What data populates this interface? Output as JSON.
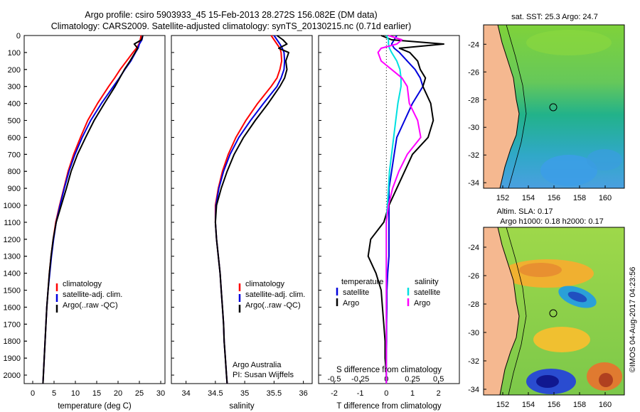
{
  "title": {
    "line1": "Argo profile: csiro 5903933_45 15-Feb-2013 28.272S 156.082E (DM data)",
    "line2": "Climatology: CARS2009. Satellite-adjusted climatology: synTS_20130215.nc (0.71d earlier)"
  },
  "colors": {
    "climatology": "#ff0000",
    "satellite": "#0000dd",
    "argo": "#000000",
    "sat_s": "#00e0e0",
    "argo_s": "#ff00ff",
    "land": "#f5b890"
  },
  "depth_axis": {
    "min": 0,
    "max": 2050,
    "ticks": [
      "0",
      "100",
      "200",
      "300",
      "400",
      "500",
      "600",
      "700",
      "800",
      "900",
      "1000",
      "1100",
      "1200",
      "1300",
      "1400",
      "1500",
      "1600",
      "1700",
      "1800",
      "1900",
      "2000"
    ]
  },
  "chart_data": [
    {
      "type": "line",
      "name": "temperature",
      "xlabel": "temperature (deg C)",
      "xlim": [
        -2,
        31
      ],
      "xticks": [
        "0",
        "5",
        "10",
        "15",
        "20",
        "25",
        "30"
      ],
      "depths": [
        0,
        25,
        50,
        75,
        100,
        150,
        200,
        250,
        300,
        400,
        500,
        600,
        700,
        800,
        900,
        1000,
        1100,
        1200,
        1300,
        1400,
        1500,
        1600,
        1700,
        1800,
        1900,
        2000,
        2050
      ],
      "series": [
        {
          "name": "climatology",
          "values": [
            25.4,
            25.2,
            24.9,
            24.3,
            23.5,
            22.0,
            20.5,
            19.2,
            17.8,
            15.2,
            12.9,
            11.2,
            9.6,
            8.3,
            7.3,
            6.3,
            5.4,
            4.8,
            4.3,
            3.9,
            3.6,
            3.3,
            3.1,
            2.9,
            2.7,
            2.5,
            2.4
          ]
        },
        {
          "name": "satellite",
          "values": [
            25.8,
            25.6,
            25.0,
            24.7,
            24.1,
            23.0,
            21.6,
            20.3,
            18.9,
            16.1,
            13.6,
            11.6,
            9.9,
            8.5,
            7.4,
            6.4,
            5.5,
            4.9,
            4.4,
            4.0,
            3.6,
            3.3,
            3.1,
            2.9,
            2.7,
            2.5,
            2.4
          ]
        },
        {
          "name": "argo",
          "values": [
            25.8,
            25.5,
            23.8,
            24.6,
            24.0,
            22.8,
            21.5,
            20.4,
            19.3,
            16.8,
            14.4,
            12.4,
            10.5,
            9.0,
            7.9,
            6.7,
            5.5,
            4.8,
            4.3,
            3.9,
            3.6,
            3.3,
            3.1,
            2.9,
            2.7,
            2.5,
            2.4
          ]
        }
      ],
      "legend": [
        "climatology",
        "satellite-adj. clim.",
        "Argo(..raw -QC)"
      ]
    },
    {
      "type": "line",
      "name": "salinity",
      "xlabel": "salinity",
      "xlim": [
        33.75,
        36.15
      ],
      "xticks": [
        "34",
        "34.5",
        "35",
        "35.5",
        "36"
      ],
      "depths": [
        0,
        25,
        50,
        75,
        100,
        150,
        200,
        250,
        300,
        400,
        500,
        600,
        700,
        800,
        900,
        1000,
        1100,
        1200,
        1300,
        1400,
        1500,
        1600,
        1700,
        1800,
        1900,
        2000,
        2050
      ],
      "series": [
        {
          "name": "climatology",
          "values": [
            35.45,
            35.5,
            35.55,
            35.6,
            35.62,
            35.63,
            35.6,
            35.55,
            35.45,
            35.22,
            35.02,
            34.85,
            34.72,
            34.62,
            34.55,
            34.5,
            34.5,
            34.52,
            34.55,
            34.58,
            34.6,
            34.62,
            34.64,
            34.65,
            34.67,
            34.69,
            34.7
          ]
        },
        {
          "name": "satellite",
          "values": [
            35.5,
            35.55,
            35.6,
            35.64,
            35.67,
            35.68,
            35.67,
            35.62,
            35.55,
            35.32,
            35.1,
            34.9,
            34.75,
            34.64,
            34.56,
            34.51,
            34.5,
            34.52,
            34.55,
            34.58,
            34.6,
            34.62,
            34.64,
            34.65,
            34.67,
            34.69,
            34.7
          ]
        },
        {
          "name": "argo",
          "values": [
            35.55,
            35.65,
            35.72,
            35.58,
            35.75,
            35.7,
            35.72,
            35.68,
            35.6,
            35.4,
            35.18,
            34.98,
            34.82,
            34.7,
            34.6,
            34.52,
            34.5,
            34.52,
            34.55,
            34.58,
            34.6,
            34.62,
            34.64,
            34.65,
            34.67,
            34.69,
            34.7
          ]
        }
      ],
      "legend": [
        "climatology",
        "satellite-adj. clim.",
        "Argo(..raw -QC)"
      ],
      "annotation": {
        "line1": "Argo Australia",
        "line2": "PI: Susan Wijffels"
      }
    },
    {
      "type": "line",
      "name": "differences",
      "xlabel": "T difference from climatology",
      "xlabel_top": "S difference from climatology",
      "xlim": [
        -2.6,
        2.8
      ],
      "xticks": [
        "-2",
        "-1",
        "0",
        "1",
        "2"
      ],
      "sticks": [
        "-0.5",
        "-0.25",
        "0",
        "0.25",
        "0.5"
      ],
      "depths": [
        0,
        25,
        50,
        75,
        100,
        150,
        200,
        250,
        300,
        400,
        500,
        600,
        700,
        800,
        900,
        1000,
        1100,
        1200,
        1300,
        1400,
        1500,
        1600,
        1700,
        1800,
        1900,
        2000,
        2050
      ],
      "series": [
        {
          "name": "temperature satellite",
          "values": [
            0.4,
            0.3,
            0.2,
            0.3,
            0.5,
            0.8,
            1.1,
            1.3,
            1.4,
            1.0,
            0.7,
            0.4,
            0.3,
            0.2,
            0.1,
            0.1,
            0.1,
            0.1,
            0.1,
            0.05,
            0.02,
            0.02,
            0.01,
            0.01,
            0.0,
            0.0,
            0.0
          ]
        },
        {
          "name": "temperature argo",
          "values": [
            -0.2,
            0.2,
            2.2,
            0.5,
            0.9,
            1.2,
            1.3,
            1.5,
            1.4,
            1.7,
            1.8,
            1.6,
            1.0,
            0.7,
            0.4,
            0.1,
            -0.1,
            -0.6,
            -0.7,
            -0.4,
            -0.2,
            -0.15,
            -0.1,
            -0.05,
            -0.05,
            0.0,
            0.0
          ]
        },
        {
          "name": "salinity satellite",
          "values": [
            0.0,
            0.02,
            0.02,
            0.03,
            0.05,
            0.1,
            0.13,
            0.14,
            0.14,
            0.11,
            0.09,
            0.07,
            0.05,
            0.03,
            0.02,
            0.01,
            0.0,
            0.0,
            0.0,
            0.0,
            0.0,
            0.0,
            0.0,
            0.0,
            0.0,
            0.0,
            0.0
          ]
        },
        {
          "name": "salinity argo",
          "values": [
            0.02,
            0.15,
            0.1,
            -0.05,
            -0.08,
            -0.05,
            0.05,
            0.15,
            0.2,
            0.22,
            0.3,
            0.33,
            0.2,
            0.12,
            0.06,
            0.02,
            0.0,
            0.0,
            0.0,
            0.0,
            0.0,
            0.0,
            0.0,
            0.0,
            0.0,
            0.0,
            0.0
          ]
        }
      ],
      "legend": {
        "temp_head": "temperature",
        "sal_head": "salinity",
        "satellite": "satellite",
        "argo": "Argo"
      }
    }
  ],
  "maps": {
    "sst": {
      "title": "sat. SST: 25.3  Argo: 24.7"
    },
    "sla": {
      "title1": "Altim. SLA: 0.17",
      "title2": "Argo h1000: 0.18 h2000: 0.17"
    },
    "lat_ticks": [
      "-24",
      "-26",
      "-28",
      "-30",
      "-32",
      "-34"
    ],
    "lon_ticks": [
      "152",
      "154",
      "156",
      "158",
      "160"
    ],
    "credit": "©IMOS 04-Aug-2017 04:23:56"
  }
}
